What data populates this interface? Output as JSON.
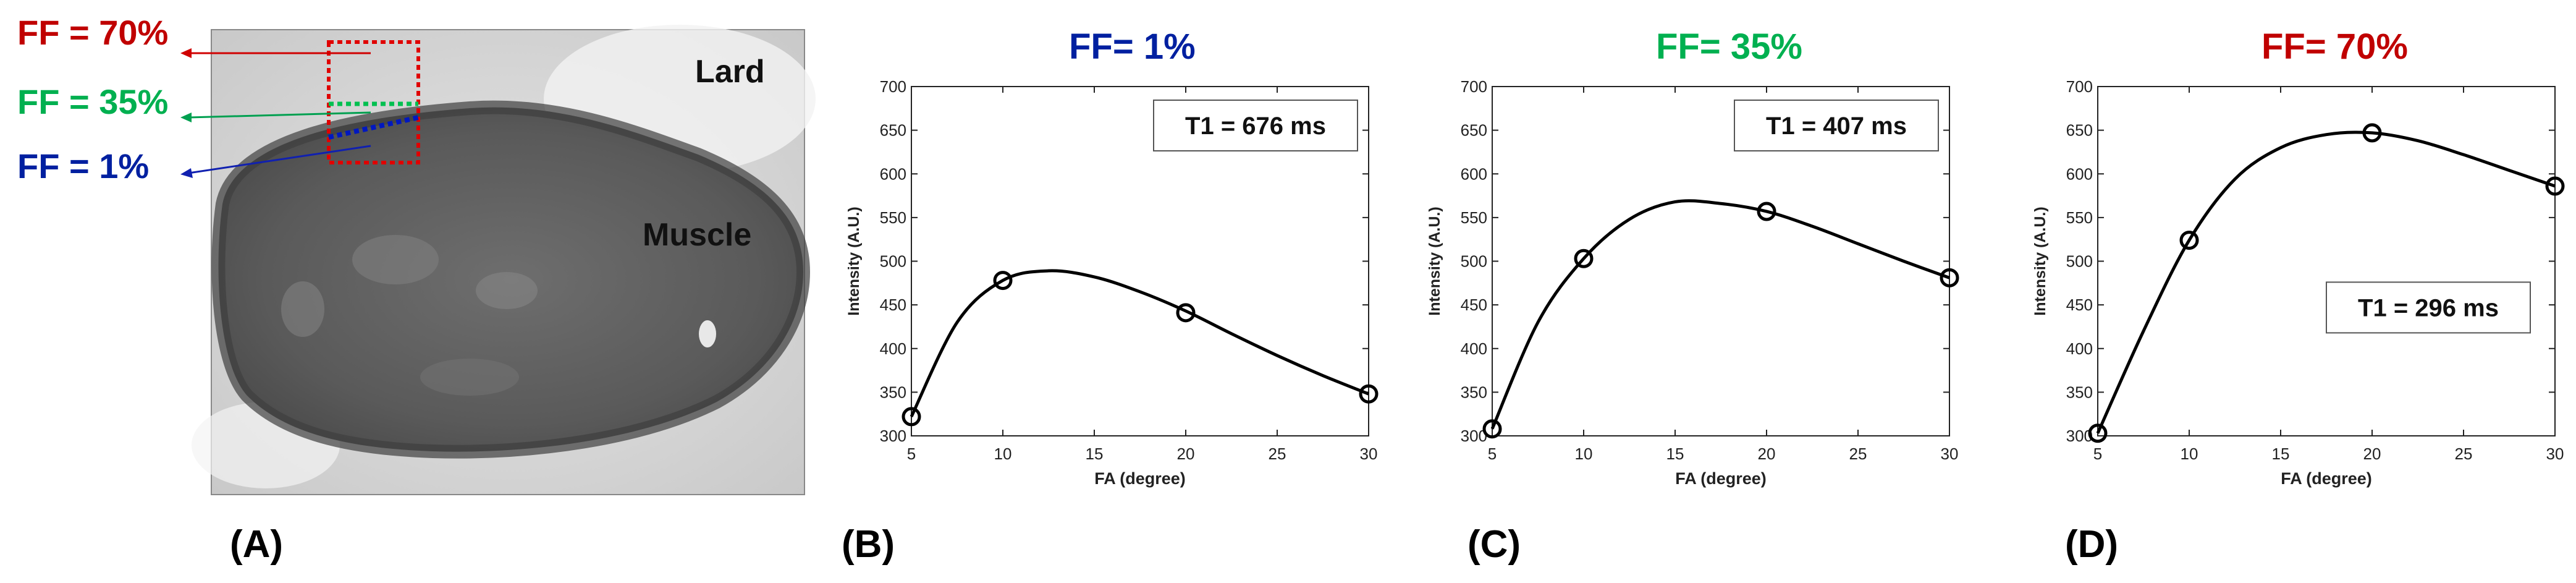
{
  "panelA": {
    "ff_labels": [
      {
        "text": "FF = 70%",
        "color": "#c00000"
      },
      {
        "text": "FF = 35%",
        "color": "#00b050"
      },
      {
        "text": "FF = 1%",
        "color": "#0020a0"
      }
    ],
    "lard_label": "Lard",
    "muscle_label": "Muscle",
    "panel_label": "(A)"
  },
  "panel_labels": [
    "(B)",
    "(C)",
    "(D)"
  ],
  "chart_data": [
    {
      "type": "line",
      "title": "FF= 1%",
      "title_color": "#0020a0",
      "x": [
        5,
        10,
        20,
        30
      ],
      "y": [
        322,
        478,
        441,
        348
      ],
      "fit_curve": {
        "x": [
          5,
          7.5,
          10,
          12.5,
          15,
          17.5,
          20,
          22.5,
          25,
          27.5,
          30
        ],
        "y": [
          322,
          430,
          478,
          489,
          482,
          465,
          443,
          417,
          392,
          369,
          348
        ]
      },
      "xlabel": "FA (degree)",
      "ylabel": "Intensity (A.U.)",
      "xlim": [
        5,
        30
      ],
      "ylim": [
        300,
        700
      ],
      "xticks": [
        5,
        10,
        15,
        20,
        25,
        30
      ],
      "yticks": [
        300,
        350,
        400,
        450,
        500,
        550,
        600,
        650,
        700
      ],
      "annotation": "T1 = 676 ms",
      "annotation_position": "top-right"
    },
    {
      "type": "line",
      "title": "FF= 35%",
      "title_color": "#00b050",
      "x": [
        5,
        10,
        20,
        30
      ],
      "y": [
        308,
        503,
        557,
        481
      ],
      "fit_curve": {
        "x": [
          5,
          7.5,
          10,
          12.5,
          15,
          17.5,
          20,
          22.5,
          25,
          27.5,
          30
        ],
        "y": [
          308,
          430,
          503,
          548,
          568,
          566,
          557,
          540,
          520,
          500,
          481
        ]
      },
      "xlabel": "FA (degree)",
      "ylabel": "Intensity (A.U.)",
      "xlim": [
        5,
        30
      ],
      "ylim": [
        300,
        700
      ],
      "xticks": [
        5,
        10,
        15,
        20,
        25,
        30
      ],
      "yticks": [
        300,
        350,
        400,
        450,
        500,
        550,
        600,
        650,
        700
      ],
      "annotation": "T1 = 407 ms",
      "annotation_position": "top-right"
    },
    {
      "type": "line",
      "title": "FF= 70%",
      "title_color": "#c00000",
      "x": [
        5,
        10,
        20,
        30
      ],
      "y": [
        303,
        524,
        647,
        586
      ],
      "fit_curve": {
        "x": [
          5,
          7.5,
          10,
          12.5,
          15,
          17.5,
          20,
          22.5,
          25,
          27.5,
          30
        ],
        "y": [
          303,
          420,
          524,
          594,
          630,
          645,
          647,
          638,
          622,
          604,
          586
        ]
      },
      "xlabel": "FA (degree)",
      "ylabel": "Intensity (A.U.)",
      "xlim": [
        5,
        30
      ],
      "ylim": [
        300,
        700
      ],
      "xticks": [
        5,
        10,
        15,
        20,
        25,
        30
      ],
      "yticks": [
        300,
        350,
        400,
        450,
        500,
        550,
        600,
        650,
        700
      ],
      "annotation": "T1 = 296 ms",
      "annotation_position": "middle-right"
    }
  ]
}
